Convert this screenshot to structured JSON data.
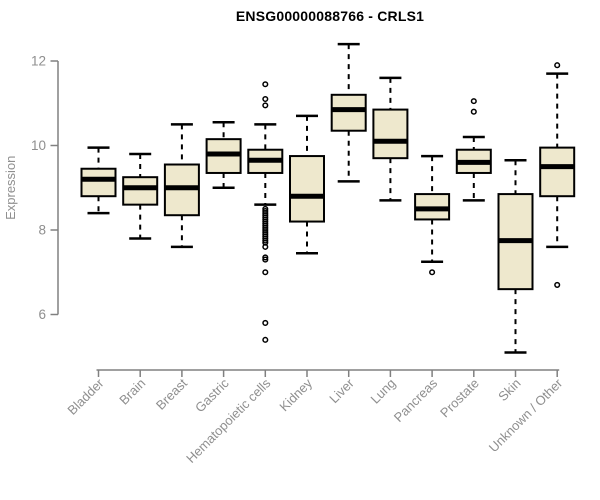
{
  "title": "ENSG00000088766 - CRLS1",
  "y_axis": {
    "label": "Expression",
    "ticks": [
      6,
      8,
      10,
      12
    ]
  },
  "colors": {
    "box_fill": "#EEE8CD",
    "box_border": "#000000",
    "median": "#000000",
    "whisker": "#000000",
    "axis_line": "#808080",
    "tick_label": "#8F8F8F",
    "title_color": "#000000",
    "background": "#FFFFFF"
  },
  "chart_data": {
    "type": "boxplot",
    "title": "ENSG00000088766 - CRLS1",
    "xlabel": "",
    "ylabel": "Expression",
    "ylim": [
      5,
      12.5
    ],
    "yticks": [
      6,
      8,
      10,
      12
    ],
    "grid": false,
    "legend": false,
    "categories": [
      "Bladder",
      "Brain",
      "Breast",
      "Gastric",
      "Hematopoietic cells",
      "Kidney",
      "Liver",
      "Lung",
      "Pancreas",
      "Prostate",
      "Skin",
      "Unknown / Other"
    ],
    "series": [
      {
        "name": "Bladder",
        "whisker_low": 8.4,
        "q1": 8.8,
        "median": 9.2,
        "q3": 9.45,
        "whisker_high": 9.95,
        "outliers": []
      },
      {
        "name": "Brain",
        "whisker_low": 7.8,
        "q1": 8.6,
        "median": 9.0,
        "q3": 9.25,
        "whisker_high": 9.8,
        "outliers": []
      },
      {
        "name": "Breast",
        "whisker_low": 7.6,
        "q1": 8.35,
        "median": 9.0,
        "q3": 9.55,
        "whisker_high": 10.5,
        "outliers": []
      },
      {
        "name": "Gastric",
        "whisker_low": 9.0,
        "q1": 9.35,
        "median": 9.8,
        "q3": 10.15,
        "whisker_high": 10.55,
        "outliers": []
      },
      {
        "name": "Hematopoietic cells",
        "whisker_low": 8.6,
        "q1": 9.35,
        "median": 9.65,
        "q3": 9.9,
        "whisker_high": 10.5,
        "outliers": [
          11.45,
          11.1,
          10.95,
          8.5,
          8.45,
          8.4,
          8.35,
          8.3,
          8.25,
          8.2,
          8.15,
          8.1,
          8.05,
          8.0,
          7.95,
          7.9,
          7.85,
          7.8,
          7.75,
          7.7,
          7.6,
          7.35,
          7.3,
          7.0,
          5.8,
          5.4
        ]
      },
      {
        "name": "Kidney",
        "whisker_low": 7.45,
        "q1": 8.2,
        "median": 8.8,
        "q3": 9.75,
        "whisker_high": 10.7,
        "outliers": []
      },
      {
        "name": "Liver",
        "whisker_low": 9.15,
        "q1": 10.35,
        "median": 10.85,
        "q3": 11.2,
        "whisker_high": 12.4,
        "outliers": []
      },
      {
        "name": "Lung",
        "whisker_low": 8.7,
        "q1": 9.7,
        "median": 10.1,
        "q3": 10.85,
        "whisker_high": 11.6,
        "outliers": []
      },
      {
        "name": "Pancreas",
        "whisker_low": 7.25,
        "q1": 8.25,
        "median": 8.5,
        "q3": 8.85,
        "whisker_high": 9.75,
        "outliers": [
          7.0
        ]
      },
      {
        "name": "Prostate",
        "whisker_low": 8.7,
        "q1": 9.35,
        "median": 9.6,
        "q3": 9.9,
        "whisker_high": 10.2,
        "outliers": [
          11.05,
          10.8
        ]
      },
      {
        "name": "Skin",
        "whisker_low": 5.1,
        "q1": 6.6,
        "median": 7.75,
        "q3": 8.85,
        "whisker_high": 9.65,
        "outliers": []
      },
      {
        "name": "Unknown / Other",
        "whisker_low": 7.6,
        "q1": 8.8,
        "median": 9.5,
        "q3": 9.95,
        "whisker_high": 11.7,
        "outliers": [
          11.9,
          6.7
        ]
      }
    ]
  }
}
